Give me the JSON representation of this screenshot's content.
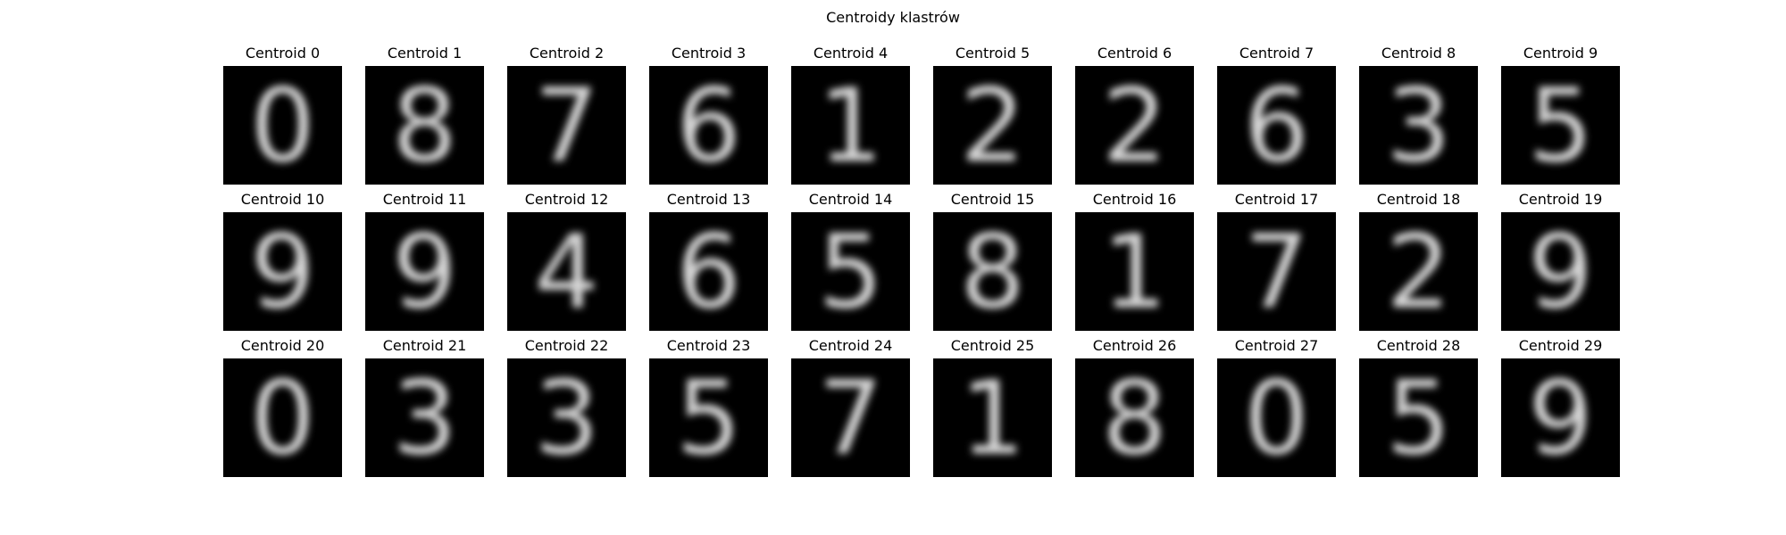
{
  "figure_title": "Centroidy klastrów",
  "colormap": "gray",
  "rows": 3,
  "cols": 10,
  "centroids": [
    {
      "label": "Centroid 0",
      "digit": "0"
    },
    {
      "label": "Centroid 1",
      "digit": "8"
    },
    {
      "label": "Centroid 2",
      "digit": "7"
    },
    {
      "label": "Centroid 3",
      "digit": "6"
    },
    {
      "label": "Centroid 4",
      "digit": "1"
    },
    {
      "label": "Centroid 5",
      "digit": "2"
    },
    {
      "label": "Centroid 6",
      "digit": "2"
    },
    {
      "label": "Centroid 7",
      "digit": "6"
    },
    {
      "label": "Centroid 8",
      "digit": "3"
    },
    {
      "label": "Centroid 9",
      "digit": "5"
    },
    {
      "label": "Centroid 10",
      "digit": "9"
    },
    {
      "label": "Centroid 11",
      "digit": "9"
    },
    {
      "label": "Centroid 12",
      "digit": "4"
    },
    {
      "label": "Centroid 13",
      "digit": "6"
    },
    {
      "label": "Centroid 14",
      "digit": "5"
    },
    {
      "label": "Centroid 15",
      "digit": "8"
    },
    {
      "label": "Centroid 16",
      "digit": "1"
    },
    {
      "label": "Centroid 17",
      "digit": "7"
    },
    {
      "label": "Centroid 18",
      "digit": "2"
    },
    {
      "label": "Centroid 19",
      "digit": "9"
    },
    {
      "label": "Centroid 20",
      "digit": "0"
    },
    {
      "label": "Centroid 21",
      "digit": "3"
    },
    {
      "label": "Centroid 22",
      "digit": "3"
    },
    {
      "label": "Centroid 23",
      "digit": "5"
    },
    {
      "label": "Centroid 24",
      "digit": "7"
    },
    {
      "label": "Centroid 25",
      "digit": "1"
    },
    {
      "label": "Centroid 26",
      "digit": "8"
    },
    {
      "label": "Centroid 27",
      "digit": "0"
    },
    {
      "label": "Centroid 28",
      "digit": "5"
    },
    {
      "label": "Centroid 29",
      "digit": "9"
    }
  ]
}
